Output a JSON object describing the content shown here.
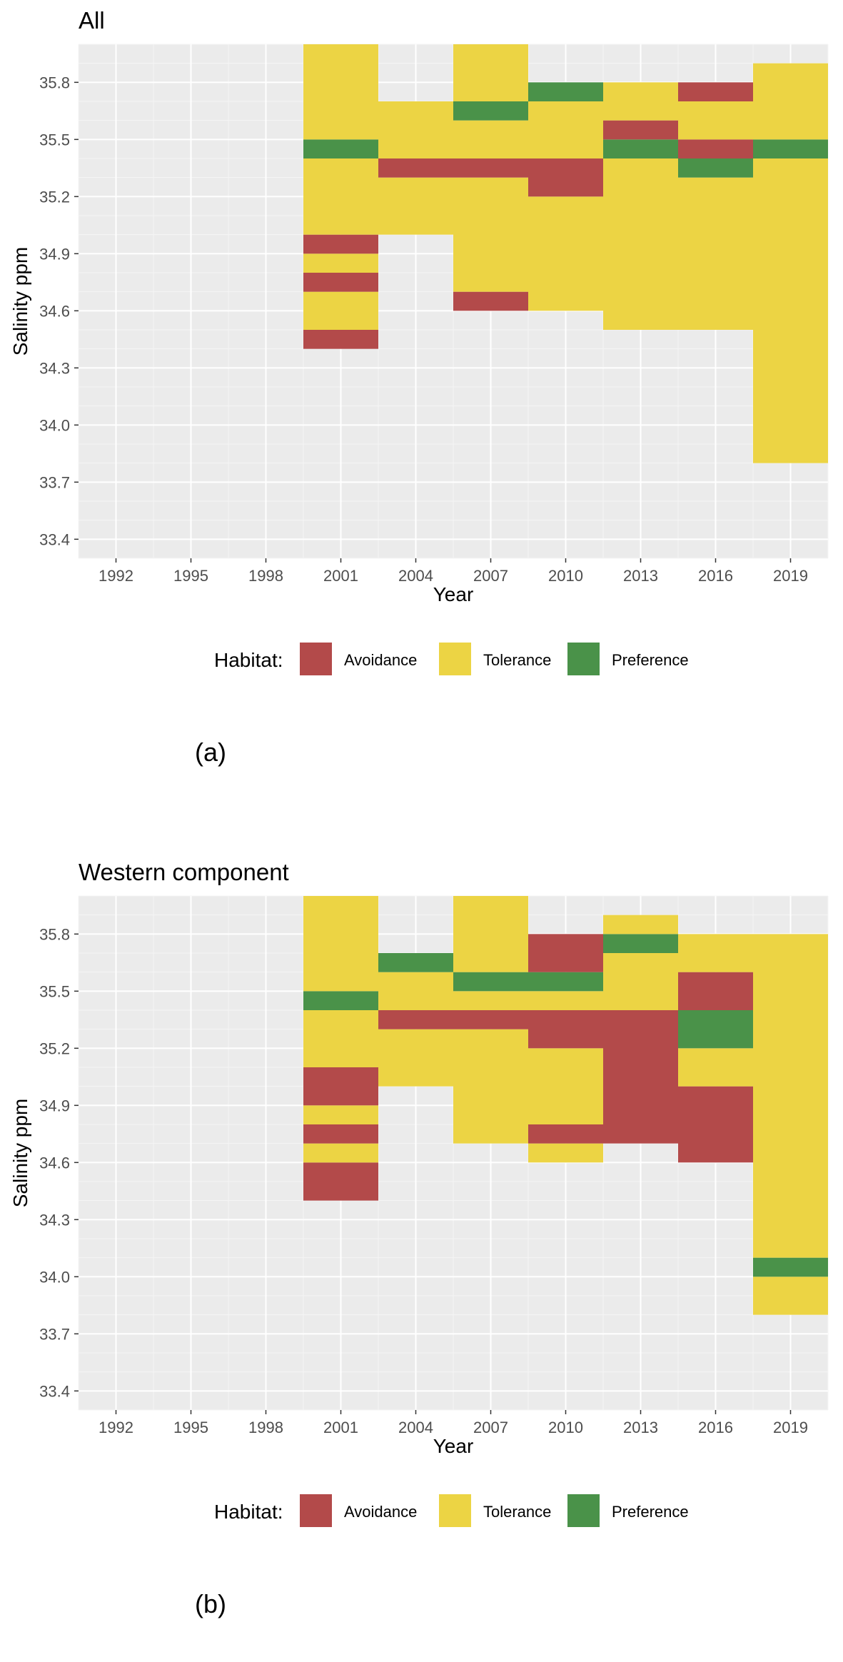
{
  "colors": {
    "Avoidance": "#b34a4a",
    "Tolerance": "#ecd444",
    "Preference": "#4a9249",
    "panel_bg": "#ebebeb",
    "grid_major": "#ffffff",
    "grid_minor": "#f5f5f5"
  },
  "legend": {
    "title": "Habitat:",
    "items": [
      "Avoidance",
      "Tolerance",
      "Preference"
    ]
  },
  "chart_data": [
    {
      "type": "heatmap",
      "title": "All",
      "sublabel": "(a)",
      "xlabel": "Year",
      "ylabel": "Salinity ppm",
      "xlim": [
        1990.5,
        2020.5
      ],
      "ylim": [
        33.3,
        36.0
      ],
      "xticks": [
        1992,
        1995,
        1998,
        2001,
        2004,
        2007,
        2010,
        2013,
        2016,
        2019
      ],
      "yticks": [
        33.4,
        33.7,
        34.0,
        34.3,
        34.6,
        34.9,
        35.2,
        35.5,
        35.8
      ],
      "year_bin_width": 3,
      "cells": [
        {
          "year": 2001,
          "s_low": 34.4,
          "s_high": 34.5,
          "habitat": "Avoidance"
        },
        {
          "year": 2001,
          "s_low": 34.5,
          "s_high": 34.7,
          "habitat": "Tolerance"
        },
        {
          "year": 2001,
          "s_low": 34.7,
          "s_high": 34.8,
          "habitat": "Avoidance"
        },
        {
          "year": 2001,
          "s_low": 34.8,
          "s_high": 34.9,
          "habitat": "Tolerance"
        },
        {
          "year": 2001,
          "s_low": 34.9,
          "s_high": 35.0,
          "habitat": "Avoidance"
        },
        {
          "year": 2001,
          "s_low": 35.0,
          "s_high": 35.4,
          "habitat": "Tolerance"
        },
        {
          "year": 2001,
          "s_low": 35.4,
          "s_high": 35.5,
          "habitat": "Preference"
        },
        {
          "year": 2001,
          "s_low": 35.5,
          "s_high": 36.0,
          "habitat": "Tolerance"
        },
        {
          "year": 2004,
          "s_low": 35.0,
          "s_high": 35.3,
          "habitat": "Tolerance"
        },
        {
          "year": 2004,
          "s_low": 35.3,
          "s_high": 35.4,
          "habitat": "Avoidance"
        },
        {
          "year": 2004,
          "s_low": 35.4,
          "s_high": 35.7,
          "habitat": "Tolerance"
        },
        {
          "year": 2007,
          "s_low": 34.6,
          "s_high": 34.7,
          "habitat": "Avoidance"
        },
        {
          "year": 2007,
          "s_low": 34.7,
          "s_high": 35.3,
          "habitat": "Tolerance"
        },
        {
          "year": 2007,
          "s_low": 35.3,
          "s_high": 35.4,
          "habitat": "Avoidance"
        },
        {
          "year": 2007,
          "s_low": 35.4,
          "s_high": 35.6,
          "habitat": "Tolerance"
        },
        {
          "year": 2007,
          "s_low": 35.6,
          "s_high": 35.7,
          "habitat": "Preference"
        },
        {
          "year": 2007,
          "s_low": 35.7,
          "s_high": 36.0,
          "habitat": "Tolerance"
        },
        {
          "year": 2010,
          "s_low": 34.6,
          "s_high": 35.2,
          "habitat": "Tolerance"
        },
        {
          "year": 2010,
          "s_low": 35.2,
          "s_high": 35.4,
          "habitat": "Avoidance"
        },
        {
          "year": 2010,
          "s_low": 35.4,
          "s_high": 35.7,
          "habitat": "Tolerance"
        },
        {
          "year": 2010,
          "s_low": 35.7,
          "s_high": 35.8,
          "habitat": "Preference"
        },
        {
          "year": 2013,
          "s_low": 34.5,
          "s_high": 35.4,
          "habitat": "Tolerance"
        },
        {
          "year": 2013,
          "s_low": 35.4,
          "s_high": 35.5,
          "habitat": "Preference"
        },
        {
          "year": 2013,
          "s_low": 35.5,
          "s_high": 35.6,
          "habitat": "Avoidance"
        },
        {
          "year": 2013,
          "s_low": 35.6,
          "s_high": 35.8,
          "habitat": "Tolerance"
        },
        {
          "year": 2016,
          "s_low": 34.5,
          "s_high": 35.3,
          "habitat": "Tolerance"
        },
        {
          "year": 2016,
          "s_low": 35.3,
          "s_high": 35.4,
          "habitat": "Preference"
        },
        {
          "year": 2016,
          "s_low": 35.4,
          "s_high": 35.5,
          "habitat": "Avoidance"
        },
        {
          "year": 2016,
          "s_low": 35.5,
          "s_high": 35.7,
          "habitat": "Tolerance"
        },
        {
          "year": 2016,
          "s_low": 35.7,
          "s_high": 35.8,
          "habitat": "Avoidance"
        },
        {
          "year": 2019,
          "s_low": 33.8,
          "s_high": 35.4,
          "habitat": "Tolerance"
        },
        {
          "year": 2019,
          "s_low": 35.4,
          "s_high": 35.5,
          "habitat": "Preference"
        },
        {
          "year": 2019,
          "s_low": 35.5,
          "s_high": 35.9,
          "habitat": "Tolerance"
        }
      ]
    },
    {
      "type": "heatmap",
      "title": "Western component",
      "sublabel": "(b)",
      "xlabel": "Year",
      "ylabel": "Salinity ppm",
      "xlim": [
        1990.5,
        2020.5
      ],
      "ylim": [
        33.3,
        36.0
      ],
      "xticks": [
        1992,
        1995,
        1998,
        2001,
        2004,
        2007,
        2010,
        2013,
        2016,
        2019
      ],
      "yticks": [
        33.4,
        33.7,
        34.0,
        34.3,
        34.6,
        34.9,
        35.2,
        35.5,
        35.8
      ],
      "year_bin_width": 3,
      "cells": [
        {
          "year": 2001,
          "s_low": 34.4,
          "s_high": 34.6,
          "habitat": "Avoidance"
        },
        {
          "year": 2001,
          "s_low": 34.6,
          "s_high": 34.7,
          "habitat": "Tolerance"
        },
        {
          "year": 2001,
          "s_low": 34.7,
          "s_high": 34.8,
          "habitat": "Avoidance"
        },
        {
          "year": 2001,
          "s_low": 34.8,
          "s_high": 34.9,
          "habitat": "Tolerance"
        },
        {
          "year": 2001,
          "s_low": 34.9,
          "s_high": 35.1,
          "habitat": "Avoidance"
        },
        {
          "year": 2001,
          "s_low": 35.1,
          "s_high": 35.4,
          "habitat": "Tolerance"
        },
        {
          "year": 2001,
          "s_low": 35.4,
          "s_high": 35.5,
          "habitat": "Preference"
        },
        {
          "year": 2001,
          "s_low": 35.5,
          "s_high": 36.0,
          "habitat": "Tolerance"
        },
        {
          "year": 2004,
          "s_low": 35.0,
          "s_high": 35.3,
          "habitat": "Tolerance"
        },
        {
          "year": 2004,
          "s_low": 35.3,
          "s_high": 35.4,
          "habitat": "Avoidance"
        },
        {
          "year": 2004,
          "s_low": 35.4,
          "s_high": 35.6,
          "habitat": "Tolerance"
        },
        {
          "year": 2004,
          "s_low": 35.6,
          "s_high": 35.7,
          "habitat": "Preference"
        },
        {
          "year": 2007,
          "s_low": 34.7,
          "s_high": 35.3,
          "habitat": "Tolerance"
        },
        {
          "year": 2007,
          "s_low": 35.3,
          "s_high": 35.4,
          "habitat": "Avoidance"
        },
        {
          "year": 2007,
          "s_low": 35.4,
          "s_high": 35.5,
          "habitat": "Tolerance"
        },
        {
          "year": 2007,
          "s_low": 35.5,
          "s_high": 35.6,
          "habitat": "Preference"
        },
        {
          "year": 2007,
          "s_low": 35.6,
          "s_high": 36.0,
          "habitat": "Tolerance"
        },
        {
          "year": 2010,
          "s_low": 34.6,
          "s_high": 34.7,
          "habitat": "Tolerance"
        },
        {
          "year": 2010,
          "s_low": 34.7,
          "s_high": 34.8,
          "habitat": "Avoidance"
        },
        {
          "year": 2010,
          "s_low": 34.8,
          "s_high": 35.2,
          "habitat": "Tolerance"
        },
        {
          "year": 2010,
          "s_low": 35.2,
          "s_high": 35.4,
          "habitat": "Avoidance"
        },
        {
          "year": 2010,
          "s_low": 35.4,
          "s_high": 35.5,
          "habitat": "Tolerance"
        },
        {
          "year": 2010,
          "s_low": 35.5,
          "s_high": 35.6,
          "habitat": "Preference"
        },
        {
          "year": 2010,
          "s_low": 35.6,
          "s_high": 35.8,
          "habitat": "Avoidance"
        },
        {
          "year": 2013,
          "s_low": 34.7,
          "s_high": 35.4,
          "habitat": "Avoidance"
        },
        {
          "year": 2013,
          "s_low": 35.4,
          "s_high": 35.7,
          "habitat": "Tolerance"
        },
        {
          "year": 2013,
          "s_low": 35.7,
          "s_high": 35.8,
          "habitat": "Preference"
        },
        {
          "year": 2013,
          "s_low": 35.8,
          "s_high": 35.9,
          "habitat": "Tolerance"
        },
        {
          "year": 2016,
          "s_low": 34.6,
          "s_high": 35.0,
          "habitat": "Avoidance"
        },
        {
          "year": 2016,
          "s_low": 35.0,
          "s_high": 35.2,
          "habitat": "Tolerance"
        },
        {
          "year": 2016,
          "s_low": 35.2,
          "s_high": 35.4,
          "habitat": "Preference"
        },
        {
          "year": 2016,
          "s_low": 35.4,
          "s_high": 35.6,
          "habitat": "Avoidance"
        },
        {
          "year": 2016,
          "s_low": 35.6,
          "s_high": 35.8,
          "habitat": "Tolerance"
        },
        {
          "year": 2019,
          "s_low": 33.8,
          "s_high": 34.0,
          "habitat": "Tolerance"
        },
        {
          "year": 2019,
          "s_low": 34.0,
          "s_high": 34.1,
          "habitat": "Preference"
        },
        {
          "year": 2019,
          "s_low": 34.1,
          "s_high": 35.8,
          "habitat": "Tolerance"
        }
      ]
    }
  ]
}
